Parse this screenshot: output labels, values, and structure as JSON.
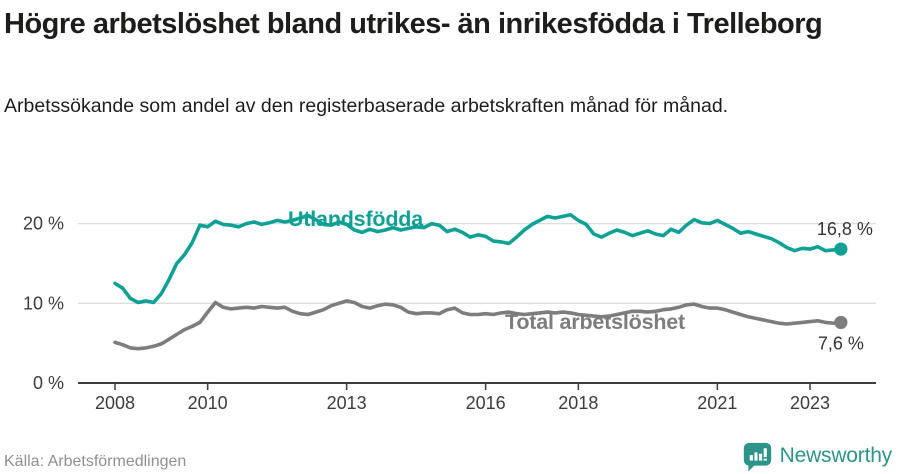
{
  "header": {
    "title": "Högre arbetslöshet bland utrikes- än inrikesfödda i Trelleborg",
    "subtitle": "Arbetssökande som andel av den registerbaserade arbetskraften månad för månad."
  },
  "footer": {
    "source": "Källa: Arbetsförmedlingen",
    "brand": "Newsworthy"
  },
  "colors": {
    "accent_teal": "#0fa195",
    "line_gray": "#7d7d7d",
    "grid": "#dddddd",
    "axis": "#3d3d3d",
    "tick_label": "#3c3c3c",
    "end_label": "#333333",
    "brand_teal": "#2c948b"
  },
  "chart_data": {
    "type": "line",
    "x_start": 2008,
    "x_step_years": 0.16667,
    "x_unit": "månad",
    "y_unit": "%",
    "ylim": [
      0,
      22
    ],
    "grid": "horizontal",
    "legend_position": "inline-labels",
    "x_ticks": [
      2008,
      2010,
      2013,
      2016,
      2018,
      2021,
      2023
    ],
    "y_ticks": [
      {
        "value": 0,
        "label": "0 %"
      },
      {
        "value": 10,
        "label": "10 %"
      },
      {
        "value": 20,
        "label": "20 %"
      }
    ],
    "series": [
      {
        "name": "Utlandsfödda",
        "color": "#0fa195",
        "end_label": "16,8 %",
        "end_value": 16.8,
        "values": [
          12.5,
          11.9,
          10.6,
          10.1,
          10.3,
          10.1,
          11.2,
          13.0,
          15.0,
          16.1,
          17.6,
          19.8,
          19.6,
          20.3,
          19.9,
          19.8,
          19.6,
          20.0,
          20.2,
          19.9,
          20.1,
          20.4,
          20.2,
          20.4,
          20.7,
          21.0,
          20.5,
          19.9,
          19.8,
          20.2,
          19.9,
          19.2,
          18.9,
          19.3,
          19.0,
          19.2,
          19.5,
          19.2,
          19.4,
          19.6,
          19.5,
          20.0,
          19.8,
          19.0,
          19.3,
          18.9,
          18.3,
          18.6,
          18.4,
          17.8,
          17.7,
          17.5,
          18.3,
          19.2,
          19.9,
          20.4,
          20.9,
          20.7,
          20.9,
          21.1,
          20.4,
          19.9,
          18.7,
          18.3,
          18.8,
          19.2,
          18.9,
          18.5,
          18.8,
          19.1,
          18.7,
          18.5,
          19.3,
          18.9,
          19.8,
          20.5,
          20.1,
          20.0,
          20.4,
          19.9,
          19.4,
          18.8,
          19.0,
          18.7,
          18.4,
          18.1,
          17.6,
          17.0,
          16.6,
          16.9,
          16.8,
          17.1,
          16.6,
          16.7,
          16.8
        ]
      },
      {
        "name": "Total arbetslöshet",
        "color": "#7d7d7d",
        "end_label": "7,6 %",
        "end_value": 7.6,
        "values": [
          5.1,
          4.8,
          4.4,
          4.3,
          4.4,
          4.6,
          4.9,
          5.5,
          6.1,
          6.7,
          7.1,
          7.6,
          8.9,
          10.1,
          9.5,
          9.3,
          9.4,
          9.5,
          9.4,
          9.6,
          9.5,
          9.4,
          9.5,
          9.0,
          8.7,
          8.6,
          8.9,
          9.2,
          9.7,
          10.0,
          10.3,
          10.1,
          9.6,
          9.4,
          9.7,
          9.9,
          9.8,
          9.5,
          8.9,
          8.7,
          8.8,
          8.8,
          8.7,
          9.2,
          9.4,
          8.8,
          8.6,
          8.6,
          8.7,
          8.6,
          8.8,
          8.9,
          8.7,
          8.6,
          8.7,
          8.8,
          8.9,
          8.8,
          8.9,
          8.8,
          8.6,
          8.5,
          8.4,
          8.3,
          8.4,
          8.6,
          8.8,
          9.0,
          9.0,
          8.9,
          9.0,
          9.2,
          9.3,
          9.5,
          9.8,
          9.9,
          9.6,
          9.4,
          9.4,
          9.2,
          8.9,
          8.6,
          8.3,
          8.1,
          7.9,
          7.7,
          7.5,
          7.4,
          7.5,
          7.6,
          7.7,
          7.8,
          7.6,
          7.5,
          7.6
        ]
      }
    ]
  }
}
